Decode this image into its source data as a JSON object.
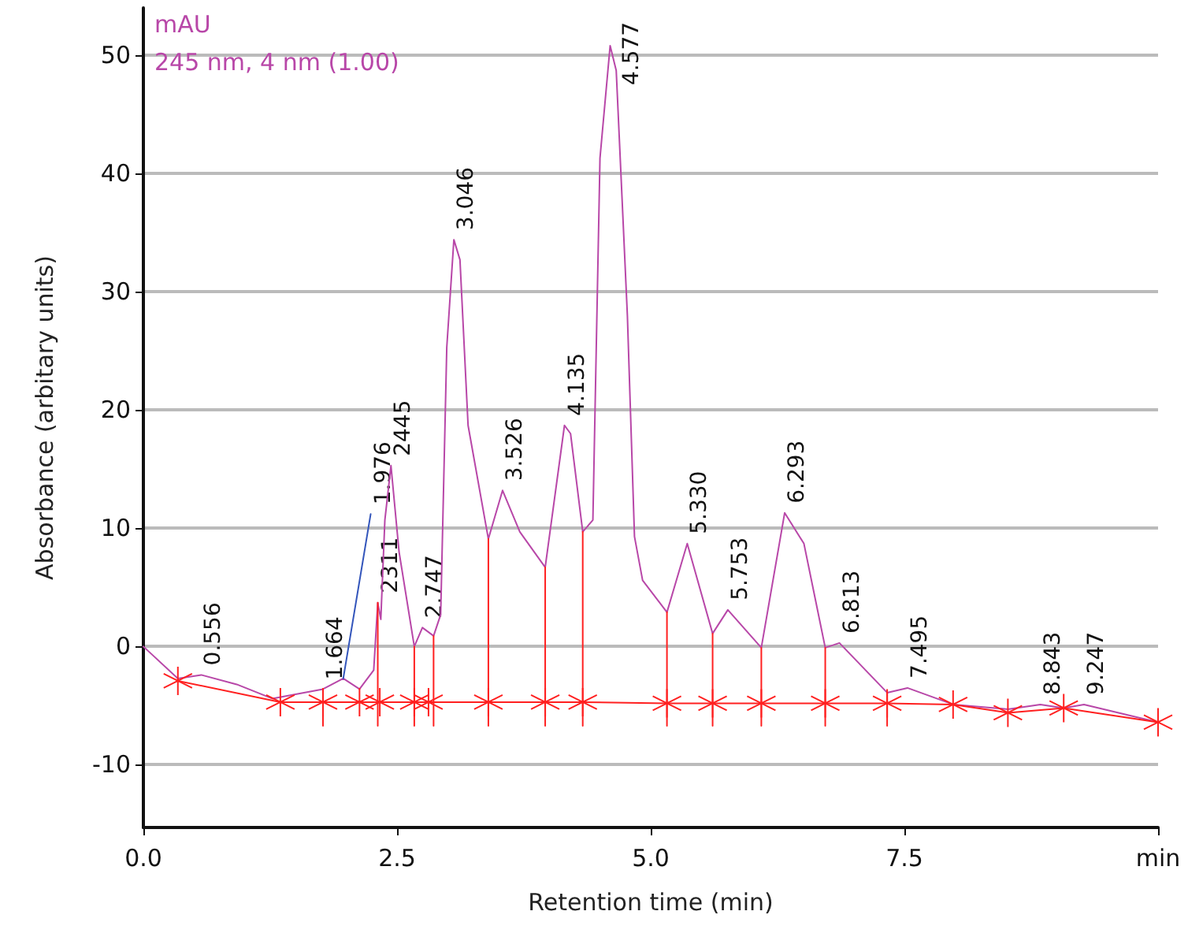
{
  "chart_data": {
    "type": "line",
    "xlabel": "Retention time (min)",
    "ylabel": "Absorbance (arbitary units)",
    "xlim": [
      0,
      10
    ],
    "xticks": [
      {
        "value": 0,
        "label": "0.0"
      },
      {
        "value": 2.5,
        "label": "2.5"
      },
      {
        "value": 5,
        "label": "5.0"
      },
      {
        "value": 7.5,
        "label": "7.5"
      },
      {
        "value": 10,
        "label": "min"
      }
    ],
    "ylim": [
      -15.3,
      54
    ],
    "yticks": [
      -10,
      0,
      10,
      20,
      30,
      40,
      50
    ],
    "grid": "y",
    "line_style": "solid",
    "series": [
      {
        "color": "#b847a8",
        "marker": "none",
        "x": [
          0,
          0.34,
          0.57,
          0.92,
          1.27,
          1.77,
          1.97,
          2.13,
          2.27,
          2.31,
          2.34,
          2.38,
          2.44,
          2.52,
          2.67,
          2.75,
          2.86,
          2.93,
          2.99,
          3.06,
          3.12,
          3.2,
          3.4,
          3.54,
          3.71,
          3.96,
          4.15,
          4.21,
          4.33,
          4.43,
          4.5,
          4.6,
          4.66,
          4.77,
          4.84,
          4.92,
          5.16,
          5.36,
          5.61,
          5.76,
          6.09,
          6.32,
          6.51,
          6.72,
          6.86,
          7.33,
          7.53,
          7.98,
          8.52,
          8.84,
          9.07,
          9.27,
          10
        ],
        "values": [
          0,
          -2.7,
          -2.4,
          -3.2,
          -4.4,
          -3.6,
          -2.7,
          -3.6,
          -2,
          3.7,
          2.3,
          10.7,
          15.3,
          8,
          0,
          1.6,
          0.9,
          2.7,
          25.3,
          34.4,
          32.7,
          18.7,
          9.1,
          13.2,
          9.7,
          6.7,
          18.7,
          18,
          9.7,
          10.7,
          41.3,
          50.8,
          48.7,
          28,
          9.3,
          5.6,
          2.9,
          8.7,
          1.1,
          3.1,
          -0.1,
          11.3,
          8.7,
          -0.1,
          0.3,
          -3.9,
          -3.5,
          -4.9,
          -5.3,
          -4.9,
          -5.2,
          -4.9,
          -6.4
        ]
      },
      {
        "color": "#ff2020",
        "marker": "cross",
        "x": [
          0.34,
          1.35,
          1.77,
          2.13,
          2.33,
          2.67,
          2.81,
          3.4,
          3.96,
          4.33,
          5.16,
          5.61,
          6.09,
          6.72,
          7.33,
          7.98,
          8.52,
          9.07,
          10
        ],
        "values": [
          -2.9,
          -4.7,
          -4.7,
          -4.7,
          -4.7,
          -4.7,
          -4.7,
          -4.7,
          -4.7,
          -4.7,
          -4.8,
          -4.8,
          -4.8,
          -4.8,
          -4.8,
          -4.9,
          -5.6,
          -5.2,
          -6.4
        ]
      },
      {
        "color": "#ff2020",
        "marker": "none",
        "x": [
          1.77,
          1.77
        ],
        "values": [
          -6.7,
          -3.6
        ]
      },
      {
        "color": "#ff2020",
        "marker": "none",
        "x": [
          2.31,
          2.31
        ],
        "values": [
          -6.7,
          3.7
        ]
      },
      {
        "color": "#ff2020",
        "marker": "none",
        "x": [
          2.67,
          2.67
        ],
        "values": [
          -6.7,
          0
        ]
      },
      {
        "color": "#ff2020",
        "marker": "none",
        "x": [
          2.86,
          2.86
        ],
        "values": [
          -6.7,
          0.9
        ]
      },
      {
        "color": "#ff2020",
        "marker": "none",
        "x": [
          3.4,
          3.4
        ],
        "values": [
          -6.7,
          9.1
        ]
      },
      {
        "color": "#ff2020",
        "marker": "none",
        "x": [
          3.96,
          3.96
        ],
        "values": [
          -6.7,
          6.7
        ]
      },
      {
        "color": "#ff2020",
        "marker": "none",
        "x": [
          4.33,
          4.33
        ],
        "values": [
          -6.7,
          9.7
        ]
      },
      {
        "color": "#ff2020",
        "marker": "none",
        "x": [
          5.16,
          5.16
        ],
        "values": [
          -6.7,
          2.9
        ]
      },
      {
        "color": "#ff2020",
        "marker": "none",
        "x": [
          5.61,
          5.61
        ],
        "values": [
          -6.7,
          1.1
        ]
      },
      {
        "color": "#ff2020",
        "marker": "none",
        "x": [
          6.09,
          6.09
        ],
        "values": [
          -6.7,
          -0.1
        ]
      },
      {
        "color": "#ff2020",
        "marker": "none",
        "x": [
          6.72,
          6.72
        ],
        "values": [
          -6.7,
          -0.1
        ]
      },
      {
        "color": "#ff2020",
        "marker": "none",
        "x": [
          7.33,
          7.33
        ],
        "values": [
          -6.7,
          -3.9
        ]
      },
      {
        "color": "#3355bb",
        "marker": "none",
        "x": [
          1.97,
          2.24
        ],
        "values": [
          -2.7,
          11.2
        ]
      }
    ],
    "annotations": [
      "mAU",
      "245 nm, 4 nm (1.00)",
      {
        "text": "0.556",
        "x": 0.57,
        "y": -2.4
      },
      {
        "text": "1.664",
        "x": 1.77,
        "y": -3.6
      },
      {
        "text": "1.976",
        "x": 2.24,
        "y": 11.2
      },
      {
        "text": "2311",
        "x": 2.31,
        "y": 3.7
      },
      {
        "text": "2445",
        "x": 2.44,
        "y": 15.3
      },
      {
        "text": "2.747",
        "x": 2.75,
        "y": 1.6
      },
      {
        "text": "3.046",
        "x": 3.06,
        "y": 34.4
      },
      {
        "text": "3.526",
        "x": 3.54,
        "y": 13.2
      },
      {
        "text": "4.135",
        "x": 4.15,
        "y": 18.7
      },
      {
        "text": "4.577",
        "x": 4.6,
        "y": 50.8
      },
      {
        "text": "5.330",
        "x": 5.36,
        "y": 8.7
      },
      {
        "text": "5.753",
        "x": 5.76,
        "y": 3.1
      },
      {
        "text": "6.293",
        "x": 6.32,
        "y": 11.3
      },
      {
        "text": "6.813",
        "x": 6.86,
        "y": 0.3
      },
      {
        "text": "7.495",
        "x": 7.53,
        "y": -3.5
      },
      {
        "text": "8.843",
        "x": 8.84,
        "y": -4.9
      },
      {
        "text": "9.247",
        "x": 9.27,
        "y": -4.9
      }
    ]
  }
}
